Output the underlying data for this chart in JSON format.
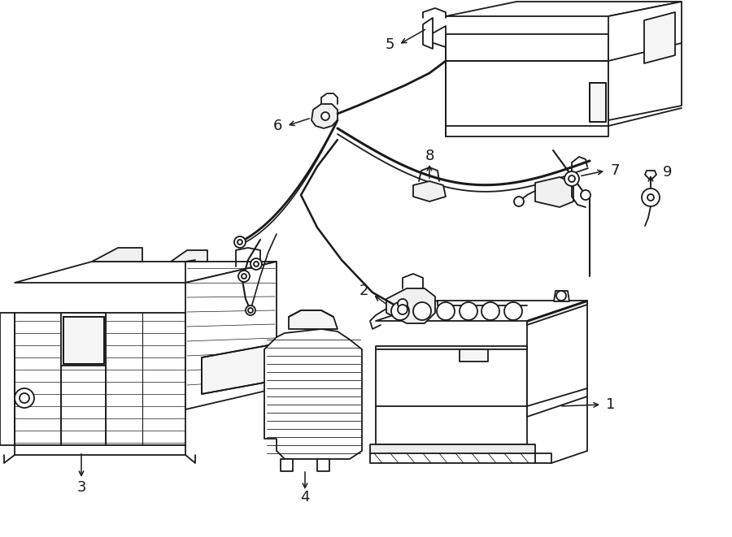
{
  "background_color": "#ffffff",
  "line_color": "#1a1a1a",
  "lw": 1.3,
  "fs": 13,
  "fig_w": 9.0,
  "fig_h": 6.61,
  "dpi": 100
}
